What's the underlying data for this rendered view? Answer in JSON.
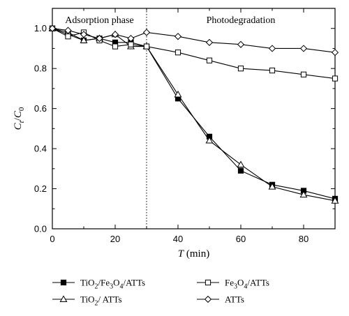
{
  "chart_data": {
    "type": "line",
    "x": [
      0,
      5,
      10,
      15,
      20,
      25,
      30,
      40,
      50,
      60,
      70,
      80,
      90
    ],
    "xlim": [
      0,
      90
    ],
    "ylim": [
      0.0,
      1.1
    ],
    "xticks": [
      "0",
      "20",
      "40",
      "60",
      "80"
    ],
    "yticks": [
      "0.0",
      "0.2",
      "0.4",
      "0.6",
      "0.8",
      "1.0"
    ],
    "xlabel": {
      "italic": "T",
      "rest": " (min)"
    },
    "ylabel": {
      "main": "C",
      "sub1": "t",
      "sep": "/",
      "main2": "C",
      "sub2": "0"
    },
    "phase_labels": [
      "Adsorption phase",
      "Photodegradation"
    ],
    "phase_boundary_x": 30,
    "grid": false,
    "legend_position": "bottom",
    "series": [
      {
        "name": "TiO2/Fe3O4/ATTs",
        "marker": "filled-square",
        "values": [
          1.0,
          0.97,
          0.94,
          0.95,
          0.93,
          0.93,
          0.91,
          0.65,
          0.46,
          0.29,
          0.22,
          0.19,
          0.15
        ]
      },
      {
        "name": "TiO2/ ATTs",
        "marker": "open-triangle",
        "values": [
          1.0,
          0.98,
          0.94,
          0.95,
          0.97,
          0.91,
          0.91,
          0.67,
          0.44,
          0.32,
          0.21,
          0.17,
          0.14
        ]
      },
      {
        "name": "Fe3O4/ATTs",
        "marker": "open-square",
        "values": [
          1.0,
          0.96,
          0.98,
          0.94,
          0.91,
          0.92,
          0.91,
          0.88,
          0.84,
          0.8,
          0.79,
          0.77,
          0.75
        ]
      },
      {
        "name": "ATTs",
        "marker": "open-diamond",
        "values": [
          1.0,
          0.99,
          0.97,
          0.95,
          0.97,
          0.95,
          0.98,
          0.96,
          0.93,
          0.92,
          0.9,
          0.9,
          0.88
        ]
      }
    ]
  },
  "legend": {
    "items": [
      {
        "parts": [
          [
            "TiO",
            ""
          ],
          [
            "2",
            "sub"
          ],
          [
            "/Fe",
            ""
          ],
          [
            "3",
            "sub"
          ],
          [
            "O",
            ""
          ],
          [
            "4",
            "sub"
          ],
          [
            "/ATTs",
            ""
          ]
        ]
      },
      {
        "parts": [
          [
            "TiO",
            ""
          ],
          [
            "2",
            "sub"
          ],
          [
            "/ ATTs",
            ""
          ]
        ]
      },
      {
        "parts": [
          [
            "Fe",
            ""
          ],
          [
            "3",
            "sub"
          ],
          [
            "O",
            ""
          ],
          [
            "4",
            "sub"
          ],
          [
            "/ATTs",
            ""
          ]
        ]
      },
      {
        "parts": [
          [
            "ATTs",
            ""
          ]
        ]
      }
    ]
  }
}
